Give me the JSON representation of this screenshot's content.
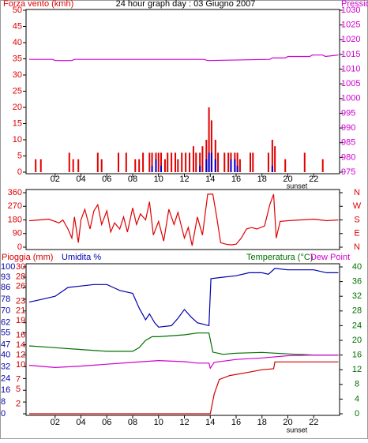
{
  "chart_data": [
    {
      "type": "bar",
      "title": "24 hour graph day : 03 Giugno 2007",
      "annotation": "sunset",
      "xlim": [
        0,
        24
      ],
      "xticks": [
        {
          "value": 2,
          "label": "02"
        },
        {
          "value": 4,
          "label": "04"
        },
        {
          "value": 6,
          "label": "06"
        },
        {
          "value": 8,
          "label": "08"
        },
        {
          "value": 10,
          "label": "10"
        },
        {
          "value": 12,
          "label": "12"
        },
        {
          "value": 14,
          "label": "14"
        },
        {
          "value": 16,
          "label": "16"
        },
        {
          "value": 18,
          "label": "18"
        },
        {
          "value": 20,
          "label": "20"
        },
        {
          "value": 22,
          "label": "22"
        }
      ],
      "ylim": [
        0,
        50
      ],
      "yticks": [
        0,
        5,
        10,
        15,
        20,
        25,
        30,
        35,
        40,
        45,
        50
      ],
      "y2lim": [
        975,
        1030
      ],
      "y2ticks": [
        975,
        980,
        985,
        990,
        995,
        1000,
        1005,
        1010,
        1015,
        1020,
        1025,
        1030
      ],
      "series": [
        {
          "name": "Forza vento (kmh)",
          "color": "#e00000",
          "x": [
            0.5,
            0.9,
            3.1,
            3.4,
            3.8,
            5.3,
            5.6,
            6.9,
            7.5,
            8.2,
            8.5,
            8.8,
            9.3,
            9.5,
            9.8,
            10,
            10.2,
            10.5,
            10.7,
            11,
            11.3,
            11.5,
            11.8,
            12.1,
            12.4,
            12.7,
            12.9,
            13.2,
            13.4,
            13.7,
            13.9,
            14.1,
            14.4,
            14.6,
            15.1,
            15.4,
            15.6,
            15.9,
            16.1,
            16.3,
            17.1,
            17.3,
            18.5,
            18.8,
            19,
            19.8,
            21.3,
            22.7
          ],
          "values": [
            4,
            4,
            6,
            4,
            4,
            6,
            4,
            6,
            6,
            4,
            4,
            6,
            6,
            6,
            6,
            6,
            6,
            4,
            6,
            6,
            6,
            4,
            6,
            6,
            6,
            8,
            6,
            6,
            8,
            10,
            20,
            16,
            10,
            6,
            6,
            6,
            6,
            6,
            6,
            4,
            6,
            6,
            6,
            10,
            8,
            4,
            6,
            4
          ]
        },
        {
          "color": "#0000d0",
          "x": [
            9.5,
            9.8,
            10.2,
            13.2,
            13.7,
            13.9,
            14.1,
            14.4,
            15.6,
            15.9,
            16.1,
            18.8
          ],
          "values": [
            2,
            4,
            2,
            2,
            4,
            6,
            6,
            4,
            4,
            4,
            2,
            2
          ]
        },
        {
          "name": "Pressione (mb)",
          "color": "#d000d0",
          "type": "line",
          "axis": "y2",
          "x": [
            0,
            1.8,
            2,
            3.3,
            3.5,
            13.5,
            13.8,
            18.6,
            18.8,
            19.8,
            20,
            21.7,
            21.9,
            22.7,
            22.9,
            23.9
          ],
          "values": [
            1013.3,
            1013.3,
            1012.9,
            1012.9,
            1013.3,
            1013.3,
            1012.9,
            1013.3,
            1013.8,
            1013.8,
            1014.3,
            1014.3,
            1014.8,
            1014.8,
            1014.3,
            1014.8
          ]
        }
      ]
    },
    {
      "type": "line",
      "xlim": [
        0,
        24
      ],
      "ylim": [
        0,
        360
      ],
      "yticks": [
        0,
        90,
        180,
        270,
        360
      ],
      "y2ticks": [
        {
          "value": 0,
          "label": "N"
        },
        {
          "value": 90,
          "label": "E"
        },
        {
          "value": 180,
          "label": "S"
        },
        {
          "value": 270,
          "label": "W"
        },
        {
          "value": 360,
          "label": "N"
        }
      ],
      "series": [
        {
          "color": "#e00000",
          "x": [
            0,
            0.8,
            1.5,
            2,
            2.3,
            2.6,
            3,
            3.3,
            3.5,
            3.8,
            4,
            4.3,
            4.7,
            5,
            5.3,
            5.6,
            6,
            6.3,
            6.6,
            7,
            7.3,
            7.6,
            8,
            8.3,
            8.6,
            9,
            9.3,
            9.6,
            10,
            10.4,
            10.8,
            11.2,
            11.5,
            12,
            12.3,
            12.6,
            13,
            13.4,
            13.8,
            14.2,
            14.5,
            14.8,
            15.2,
            15.6,
            16,
            16.4,
            16.8,
            17.2,
            17.6,
            18.2,
            18.6,
            18.9,
            19.1,
            19.4,
            20,
            21,
            22,
            23,
            23.9
          ],
          "values": [
            175,
            180,
            185,
            170,
            160,
            180,
            120,
            60,
            200,
            30,
            180,
            250,
            120,
            240,
            280,
            150,
            240,
            100,
            160,
            120,
            200,
            100,
            260,
            150,
            220,
            180,
            300,
            80,
            170,
            40,
            250,
            150,
            230,
            60,
            130,
            10,
            200,
            80,
            350,
            350,
            200,
            30,
            20,
            15,
            20,
            60,
            120,
            130,
            120,
            140,
            280,
            350,
            60,
            170,
            175,
            180,
            185,
            175,
            180
          ]
        }
      ]
    },
    {
      "type": "line",
      "annotation": "sunset",
      "xlim": [
        0,
        24
      ],
      "xticks": [
        {
          "value": 2,
          "label": "02"
        },
        {
          "value": 4,
          "label": "04"
        },
        {
          "value": 6,
          "label": "06"
        },
        {
          "value": 8,
          "label": "08"
        },
        {
          "value": 10,
          "label": "10"
        },
        {
          "value": 12,
          "label": "12"
        },
        {
          "value": 14,
          "label": "14"
        },
        {
          "value": 16,
          "label": "16"
        },
        {
          "value": 18,
          "label": "18"
        },
        {
          "value": 20,
          "label": "20"
        },
        {
          "value": 22,
          "label": "22"
        }
      ],
      "ylim": [
        0,
        100
      ],
      "yticks": [
        0,
        8,
        16,
        24,
        32,
        40,
        47,
        55,
        62,
        70,
        78,
        86,
        93,
        100
      ],
      "y3lim": [
        0,
        30
      ],
      "y3ticks": [
        2,
        5,
        7,
        10,
        12,
        14,
        16,
        19,
        21,
        23,
        26,
        28,
        30
      ],
      "y2lim": [
        0,
        40
      ],
      "y2ticks": [
        0,
        4,
        8,
        12,
        16,
        20,
        24,
        28,
        32,
        36,
        40
      ],
      "series": [
        {
          "name": "Pioggia (mm)",
          "color": "#d00000",
          "axis": "y3",
          "x": [
            0,
            14,
            14.3,
            14.7,
            15.5,
            17,
            18,
            18.9,
            19,
            23.9
          ],
          "values": [
            0,
            0,
            4,
            7,
            7.8,
            8.5,
            9,
            9.2,
            10.6,
            10.6
          ]
        },
        {
          "name": "Umidita %",
          "color": "#0000b0",
          "x": [
            0,
            1,
            2,
            3,
            4,
            5,
            6,
            6.5,
            7,
            8,
            8.5,
            9,
            9.3,
            9.7,
            10,
            11,
            11.5,
            12,
            12.5,
            13,
            13.9,
            14.05,
            15,
            16,
            17,
            18,
            18.5,
            19,
            20,
            22,
            23,
            23.9
          ],
          "values": [
            76,
            78,
            80,
            86,
            87,
            88,
            88,
            86,
            84,
            82,
            72,
            64,
            68,
            62,
            59,
            60,
            65,
            71,
            66,
            62,
            60,
            92,
            93,
            94,
            96,
            96,
            95,
            99,
            98,
            98,
            96,
            96
          ]
        },
        {
          "name": "Temperatura (°C)",
          "color": "#007000",
          "axis": "y2",
          "x": [
            0,
            2,
            4,
            6,
            8,
            8.5,
            9,
            9.5,
            10,
            12,
            13,
            13.9,
            14.2,
            15,
            16,
            18,
            20,
            22,
            23.9
          ],
          "values": [
            18.5,
            18,
            17.5,
            17,
            17,
            18,
            20,
            21,
            21,
            21.5,
            22,
            22,
            16.8,
            16.2,
            16.5,
            16.7,
            16.3,
            16,
            16
          ]
        },
        {
          "name": "Dew Point",
          "color": "#d000d0",
          "axis": "y2",
          "x": [
            0,
            2,
            4,
            6,
            8,
            10,
            12,
            13,
            13.9,
            14,
            14.3,
            16,
            18,
            20,
            22,
            23.9
          ],
          "values": [
            13.2,
            12.6,
            13,
            13.5,
            14,
            14.5,
            14.2,
            13.8,
            13.8,
            12.4,
            14,
            14.8,
            15.2,
            15.8,
            16,
            16
          ]
        }
      ]
    }
  ]
}
